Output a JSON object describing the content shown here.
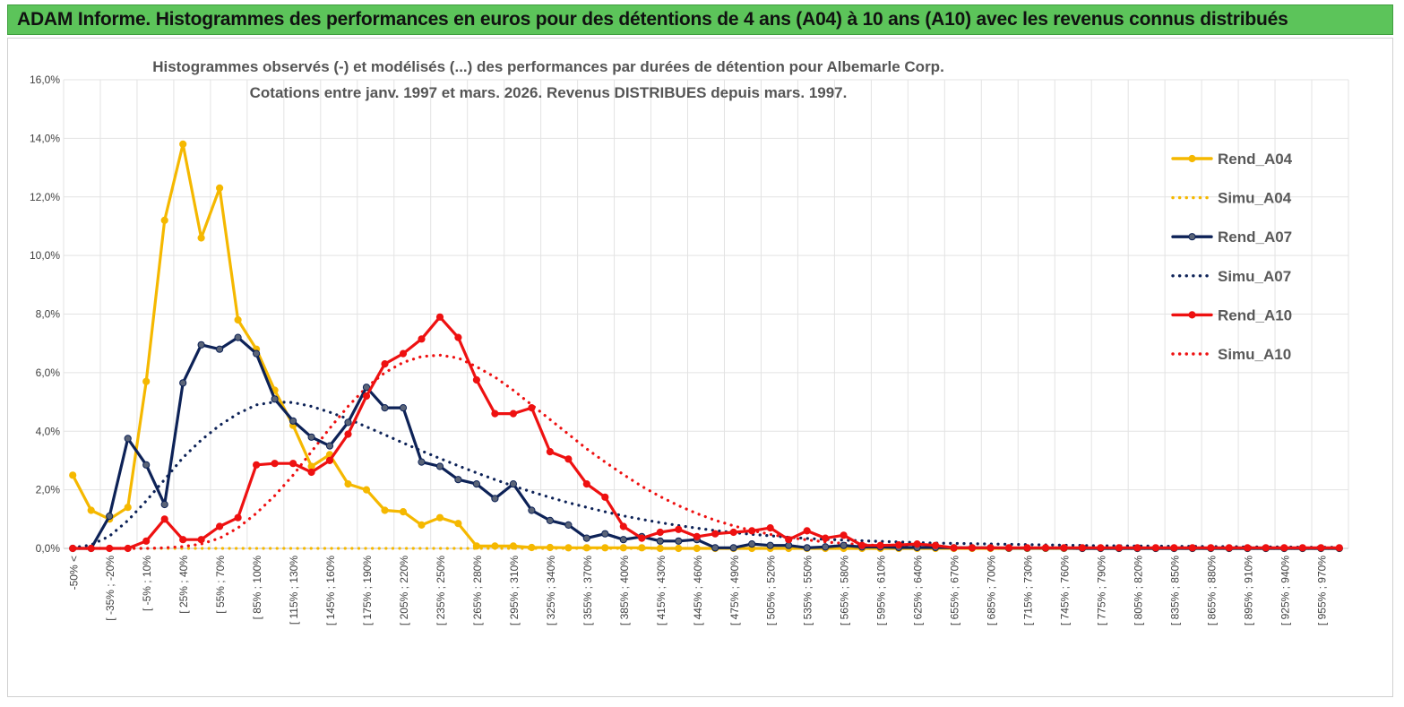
{
  "banner": {
    "title": "ADAM Informe. Histogrammes des performances en euros pour des détentions de 4 ans (A04) à 10 ans (A10) avec les revenus connus distribués"
  },
  "chart_data": {
    "type": "line",
    "title": "Histogrammes observés (-) et modélisés (...) des performances par durées de détention pour Albemarle Corp.",
    "subtitle": "Cotations entre janv. 1997 et mars. 2026. Revenus DISTRIBUES depuis mars. 1997.",
    "xlabel": "",
    "ylabel": "",
    "ylim": [
      0,
      16
    ],
    "yticks": [
      "0,0%",
      "2,0%",
      "4,0%",
      "6,0%",
      "8,0%",
      "10,0%",
      "12,0%",
      "14,0%",
      "16,0%"
    ],
    "grid": true,
    "legend_position": "right",
    "x_tick_labels": [
      "-50% <",
      "[ -35% ; -20%",
      "[ -5% ; 10%",
      "[ 25% ; 40%",
      "[ 55% ; 70%",
      "[ 85% ; 100%",
      "[ 115% ; 130%",
      "[ 145% ; 160%",
      "[ 175% ; 190%",
      "[ 205% ; 220%",
      "[ 235% ; 250%",
      "[ 265% ; 280%",
      "[ 295% ; 310%",
      "[ 325% ; 340%",
      "[ 355% ; 370%",
      "[ 385% ; 400%",
      "[ 415% ; 430%",
      "[ 445% ; 460%",
      "[ 475% ; 490%",
      "[ 505% ; 520%",
      "[ 535% ; 550%",
      "[ 565% ; 580%",
      "[ 595% ; 610%",
      "[ 625% ; 640%",
      "[ 655% ; 670%",
      "[ 685% ; 700%",
      "[ 715% ; 730%",
      "[ 745% ; 760%",
      "[ 775% ; 790%",
      "[ 805% ; 820%",
      "[ 835% ; 850%",
      "[ 865% ; 880%",
      "[ 895% ; 910%",
      "[ 925% ; 940%",
      "[ 955% ; 970%"
    ],
    "n_bins": 70,
    "series": [
      {
        "name": "Rend_A04",
        "color": "#f5b800",
        "style": "solid",
        "markers": true,
        "values": [
          2.5,
          1.3,
          1.0,
          1.4,
          5.7,
          11.2,
          13.8,
          10.6,
          12.3,
          7.8,
          6.8,
          5.4,
          4.2,
          2.8,
          3.2,
          2.2,
          2.0,
          1.3,
          1.25,
          0.8,
          1.05,
          0.85,
          0.08,
          0.08,
          0.08,
          0.03,
          0.03,
          0.02,
          0.02,
          0.02,
          0.02,
          0.02,
          0,
          0,
          0,
          0,
          0,
          0,
          0,
          0,
          0,
          0,
          0,
          0,
          0,
          0,
          0,
          0,
          0,
          0,
          0,
          0,
          0,
          0,
          0,
          0,
          0,
          0,
          0,
          0,
          0,
          0,
          0,
          0,
          0,
          0,
          0,
          0,
          0,
          0
        ]
      },
      {
        "name": "Simu_A04",
        "color": "#f5b800",
        "style": "dotted",
        "markers": false,
        "values": [
          0,
          0,
          0,
          0,
          0,
          0,
          0,
          0,
          0,
          0,
          0,
          0,
          0,
          0,
          0,
          0,
          0,
          0,
          0,
          0,
          0,
          0,
          0,
          0,
          0,
          0,
          0,
          0,
          0,
          0,
          0,
          0,
          0,
          0,
          0,
          0,
          0,
          0,
          0,
          0,
          0,
          0,
          0,
          0,
          0,
          0,
          0,
          0,
          0,
          0,
          0,
          0,
          0,
          0,
          0,
          0,
          0,
          0,
          0,
          0,
          0,
          0,
          0,
          0,
          0,
          0,
          0,
          0,
          0,
          0
        ]
      },
      {
        "name": "Rend_A07",
        "color": "#0d2257",
        "style": "solid",
        "markers": true,
        "values": [
          0,
          0,
          1.1,
          3.75,
          2.85,
          1.5,
          5.65,
          6.95,
          6.8,
          7.2,
          6.65,
          5.1,
          4.35,
          3.8,
          3.5,
          4.3,
          5.5,
          4.8,
          4.8,
          2.95,
          2.8,
          2.35,
          2.2,
          1.7,
          2.2,
          1.3,
          0.95,
          0.8,
          0.35,
          0.5,
          0.3,
          0.4,
          0.25,
          0.25,
          0.3,
          0.02,
          0.02,
          0.15,
          0.1,
          0.1,
          0.02,
          0.05,
          0.1,
          0.05,
          0.05,
          0.03,
          0.03,
          0.03,
          0.02,
          0.02,
          0.02,
          0.01,
          0.01,
          0.01,
          0.01,
          0,
          0,
          0,
          0,
          0,
          0,
          0,
          0,
          0,
          0,
          0,
          0,
          0,
          0,
          0
        ]
      },
      {
        "name": "Simu_A07",
        "color": "#0d2257",
        "style": "dotted",
        "markers": false,
        "values": [
          0.02,
          0.12,
          0.42,
          0.95,
          1.62,
          2.35,
          3.1,
          3.7,
          4.2,
          4.6,
          4.9,
          5.0,
          4.98,
          4.85,
          4.65,
          4.42,
          4.15,
          3.88,
          3.6,
          3.33,
          3.07,
          2.82,
          2.58,
          2.35,
          2.13,
          1.93,
          1.74,
          1.56,
          1.4,
          1.25,
          1.11,
          0.99,
          0.88,
          0.78,
          0.69,
          0.61,
          0.54,
          0.48,
          0.43,
          0.38,
          0.34,
          0.31,
          0.28,
          0.26,
          0.24,
          0.22,
          0.2,
          0.18,
          0.17,
          0.16,
          0.15,
          0.14,
          0.13,
          0.12,
          0.11,
          0.1,
          0.09,
          0.09,
          0.08,
          0.08,
          0.07,
          0.07,
          0.06,
          0.06,
          0.05,
          0.05,
          0.05,
          0.04,
          0.04,
          0.04
        ]
      },
      {
        "name": "Rend_A10",
        "color": "#ee1111",
        "style": "solid",
        "markers": true,
        "values": [
          0,
          0,
          0,
          0,
          0.25,
          1.0,
          0.3,
          0.3,
          0.75,
          1.05,
          2.85,
          2.9,
          2.9,
          2.6,
          3.0,
          3.9,
          5.2,
          6.3,
          6.65,
          7.15,
          7.9,
          7.2,
          5.75,
          4.6,
          4.6,
          4.8,
          3.3,
          3.05,
          2.2,
          1.75,
          0.75,
          0.35,
          0.55,
          0.65,
          0.4,
          0.5,
          0.55,
          0.6,
          0.7,
          0.3,
          0.6,
          0.35,
          0.45,
          0.1,
          0.1,
          0.12,
          0.15,
          0.1,
          0.02,
          0.02,
          0.02,
          0.02,
          0.02,
          0.02,
          0.02,
          0.02,
          0.02,
          0.02,
          0.02,
          0.02,
          0.02,
          0.02,
          0.02,
          0.02,
          0.02,
          0.02,
          0.02,
          0.02,
          0.02,
          0.02
        ]
      },
      {
        "name": "Simu_A10",
        "color": "#ee1111",
        "style": "dotted",
        "markers": false,
        "values": [
          0,
          0,
          0,
          0,
          0,
          0.02,
          0.06,
          0.15,
          0.35,
          0.7,
          1.2,
          1.8,
          2.5,
          3.3,
          4.1,
          4.85,
          5.5,
          6.0,
          6.35,
          6.55,
          6.6,
          6.5,
          6.2,
          5.85,
          5.4,
          4.9,
          4.4,
          3.9,
          3.4,
          2.95,
          2.52,
          2.12,
          1.77,
          1.46,
          1.19,
          0.96,
          0.77,
          0.61,
          0.48,
          0.37,
          0.29,
          0.22,
          0.17,
          0.13,
          0.1,
          0.07,
          0.05,
          0.04,
          0.03,
          0.02,
          0.01,
          0.01,
          0.01,
          0,
          0,
          0,
          0,
          0,
          0,
          0,
          0,
          0,
          0,
          0,
          0,
          0,
          0,
          0,
          0,
          0
        ]
      }
    ]
  }
}
